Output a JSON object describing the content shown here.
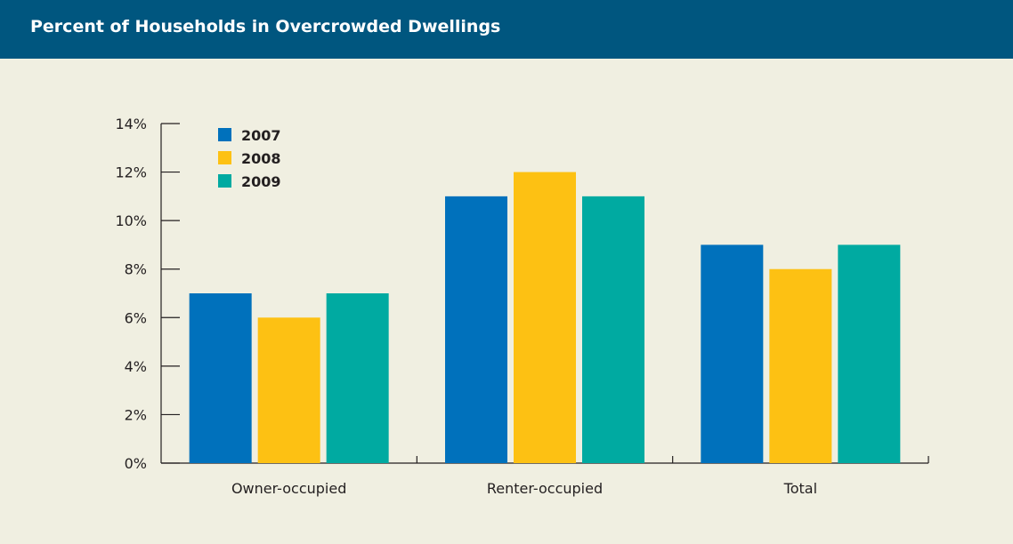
{
  "header": {
    "title": "Percent of Households in Overcrowded Dwellings"
  },
  "colors": {
    "title_bar": "#00567f",
    "background": "#f0efe1",
    "axis": "#231f20"
  },
  "chart_data": {
    "type": "bar",
    "title": "Percent of Households in Overcrowded Dwellings",
    "xlabel": "",
    "ylabel": "",
    "categories": [
      "Owner-occupied",
      "Renter-occupied",
      "Total"
    ],
    "series": [
      {
        "name": "2007",
        "values": [
          7,
          11,
          9
        ],
        "color": "#0071bc"
      },
      {
        "name": "2008",
        "values": [
          6,
          12,
          8
        ],
        "color": "#fdc113"
      },
      {
        "name": "2009",
        "values": [
          7,
          11,
          9
        ],
        "color": "#00aaa1"
      }
    ],
    "ylim": [
      0,
      14
    ],
    "yticks": [
      "0%",
      "2%",
      "4%",
      "6%",
      "8%",
      "10%",
      "12%",
      "14%"
    ],
    "grid": false,
    "legend_position": "top-left"
  }
}
